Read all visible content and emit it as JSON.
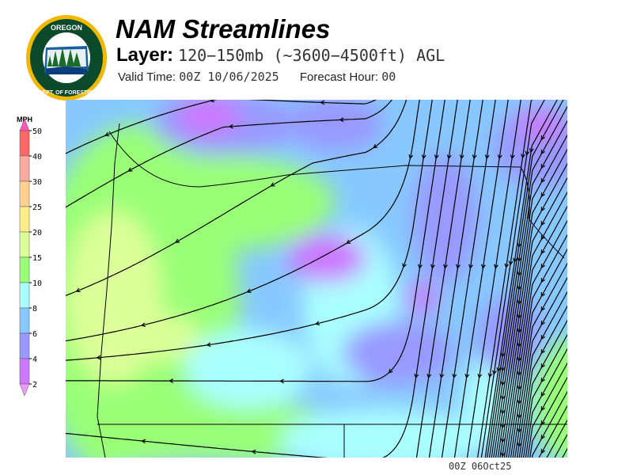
{
  "header": {
    "title": "NAM Streamlines",
    "layer_label": "Layer:",
    "layer_value": "120−150mb (~3600−4500ft) AGL",
    "valid_label": "Valid Time:",
    "valid_value": "00Z 10/06/2025",
    "forecast_label": "Forecast Hour:",
    "forecast_value": "00"
  },
  "logo": {
    "top_text": "OREGON",
    "bottom_text": "DEPARTMENT OF FORESTRY"
  },
  "legend": {
    "unit": "MPH",
    "ticks": [
      "50",
      "40",
      "30",
      "25",
      "20",
      "15",
      "10",
      "8",
      "6",
      "4",
      "2"
    ],
    "colors": [
      "#ff55bb",
      "#ff6666",
      "#ffaaa0",
      "#ffd090",
      "#ffee88",
      "#ddff99",
      "#99ff77",
      "#aaffff",
      "#88c8ff",
      "#9999ff",
      "#cc77ff",
      "#ee99ff"
    ]
  },
  "footer": {
    "stamp": "00Z 06Oct25"
  }
}
